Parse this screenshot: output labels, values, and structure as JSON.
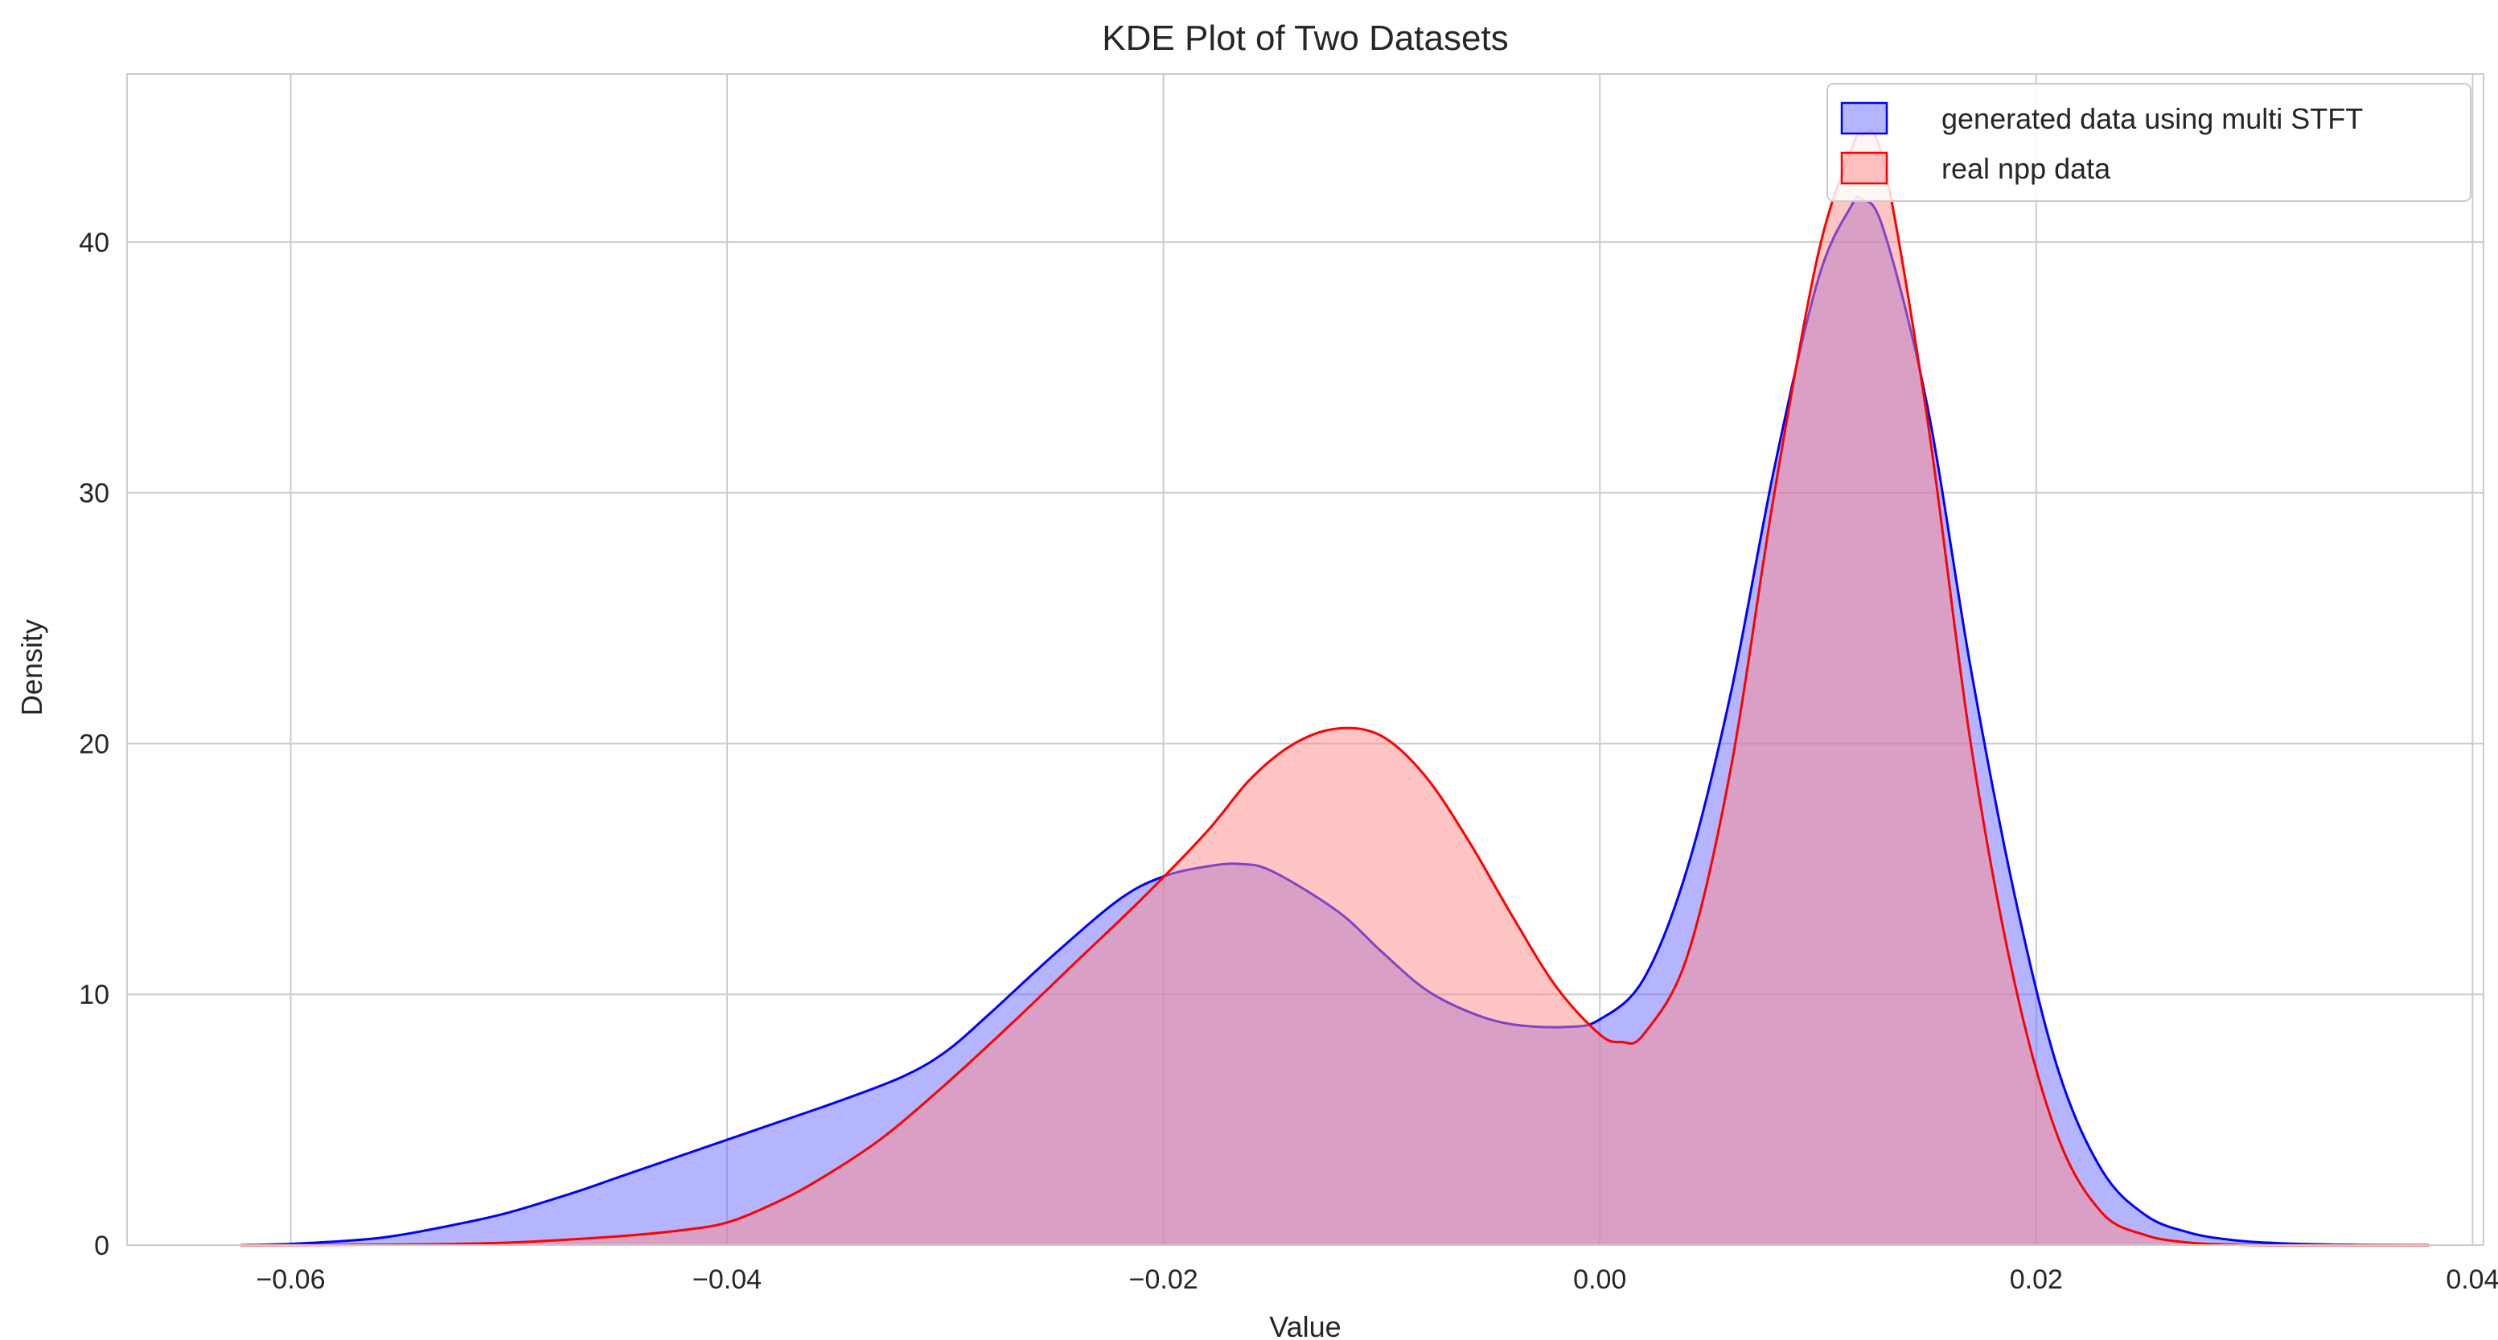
{
  "chart_data": {
    "type": "area",
    "title": "KDE Plot of Two Datasets",
    "xlabel": "Value",
    "ylabel": "Density",
    "xlim": [
      -0.0675,
      0.0405
    ],
    "ylim": [
      0,
      46.7
    ],
    "xticks": [
      -0.06,
      -0.04,
      -0.02,
      0.0,
      0.02,
      0.04
    ],
    "xtick_labels": [
      "−0.06",
      "−0.04",
      "−0.02",
      "0.00",
      "0.02",
      "0.04"
    ],
    "yticks": [
      0,
      10,
      20,
      30,
      40
    ],
    "ytick_labels": [
      "0",
      "10",
      "20",
      "30",
      "40"
    ],
    "grid": true,
    "legend_position": "top-right",
    "series": [
      {
        "name": "generated data using multi STFT",
        "line_color": "#0000ff",
        "fill_color": "#6a6aff",
        "x": [
          -0.0623,
          -0.06,
          -0.057,
          -0.055,
          -0.052,
          -0.05,
          -0.047,
          -0.045,
          -0.042,
          -0.04,
          -0.038,
          -0.035,
          -0.032,
          -0.03,
          -0.028,
          -0.025,
          -0.022,
          -0.02,
          -0.018,
          -0.0165,
          -0.015,
          -0.012,
          -0.01,
          -0.008,
          -0.006,
          -0.004,
          -0.0015,
          0.0,
          0.002,
          0.004,
          0.006,
          0.008,
          0.01,
          0.0115,
          0.012,
          0.013,
          0.015,
          0.017,
          0.019,
          0.021,
          0.023,
          0.025,
          0.027,
          0.029,
          0.031,
          0.033,
          0.035,
          0.038
        ],
        "y": [
          0.0,
          0.05,
          0.2,
          0.4,
          0.9,
          1.3,
          2.1,
          2.7,
          3.6,
          4.2,
          4.8,
          5.7,
          6.7,
          7.7,
          9.2,
          11.6,
          13.8,
          14.7,
          15.1,
          15.2,
          14.9,
          13.3,
          11.7,
          10.2,
          9.3,
          8.8,
          8.7,
          9.0,
          10.6,
          15.0,
          22.0,
          31.0,
          38.5,
          41.4,
          41.7,
          40.5,
          33.5,
          23.0,
          14.0,
          7.0,
          3.0,
          1.2,
          0.5,
          0.2,
          0.08,
          0.03,
          0.01,
          0.0
        ]
      },
      {
        "name": "real npp data",
        "line_color": "#ff0000",
        "fill_color": "#ff8a8a",
        "x": [
          -0.0623,
          -0.055,
          -0.05,
          -0.045,
          -0.042,
          -0.04,
          -0.038,
          -0.036,
          -0.033,
          -0.03,
          -0.027,
          -0.024,
          -0.021,
          -0.018,
          -0.016,
          -0.014,
          -0.012,
          -0.01,
          -0.008,
          -0.006,
          -0.004,
          -0.002,
          0.0,
          0.001,
          0.002,
          0.004,
          0.006,
          0.008,
          0.01,
          0.0115,
          0.012,
          0.013,
          0.015,
          0.017,
          0.019,
          0.021,
          0.023,
          0.025,
          0.027,
          0.029,
          0.031,
          0.033,
          0.038
        ],
        "y": [
          0.0,
          0.02,
          0.1,
          0.35,
          0.6,
          0.9,
          1.6,
          2.5,
          4.2,
          6.4,
          8.8,
          11.3,
          13.8,
          16.5,
          18.6,
          20.0,
          20.6,
          20.3,
          18.7,
          16.1,
          13.1,
          10.3,
          8.4,
          8.1,
          8.4,
          11.5,
          19.0,
          30.0,
          39.5,
          43.6,
          44.3,
          43.2,
          33.0,
          20.0,
          10.5,
          4.3,
          1.3,
          0.4,
          0.1,
          0.02,
          0.0,
          0.0,
          0.0
        ]
      }
    ]
  }
}
